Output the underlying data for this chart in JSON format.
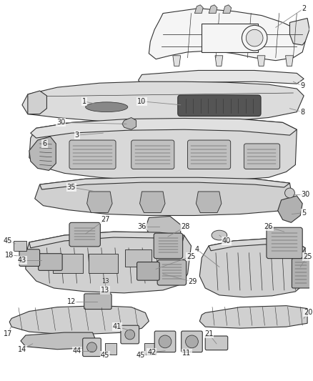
{
  "bg_color": "#ffffff",
  "fig_width": 4.38,
  "fig_height": 5.33,
  "dpi": 100,
  "line_color": "#333333",
  "text_color": "#222222",
  "leader_color": "#888888",
  "font_size": 7.0,
  "lw": 0.8,
  "parts": {
    "frame_color": "#e8e8e8",
    "dash_color": "#d8d8d8",
    "part_color": "#c8c8c8"
  }
}
